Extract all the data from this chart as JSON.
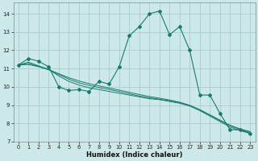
{
  "xlabel": "Humidex (Indice chaleur)",
  "background_color": "#cce8e8",
  "grid_color": "#aacccc",
  "line_color": "#1a7a6e",
  "x": [
    0,
    1,
    2,
    3,
    4,
    5,
    6,
    7,
    8,
    9,
    10,
    11,
    12,
    13,
    14,
    15,
    16,
    17,
    18,
    19,
    20,
    21,
    22,
    23
  ],
  "series_wiggly": [
    11.2,
    11.55,
    11.4,
    11.1,
    10.0,
    9.8,
    9.85,
    9.75,
    10.3,
    10.15,
    11.1,
    12.8,
    13.3,
    14.0,
    14.15,
    12.85,
    13.3,
    12.0,
    9.55,
    9.55,
    8.55,
    7.65,
    7.65,
    7.45
  ],
  "series_smooth1": [
    11.2,
    11.35,
    11.15,
    10.95,
    10.6,
    10.3,
    10.1,
    9.95,
    9.85,
    9.75,
    9.65,
    9.55,
    9.45,
    9.35,
    9.3,
    9.2,
    9.1,
    8.95,
    8.7,
    8.4,
    8.1,
    7.8,
    7.6,
    7.45
  ],
  "series_smooth2": [
    11.2,
    11.28,
    11.12,
    10.94,
    10.68,
    10.42,
    10.22,
    10.08,
    9.96,
    9.86,
    9.74,
    9.62,
    9.5,
    9.4,
    9.32,
    9.24,
    9.14,
    8.98,
    8.74,
    8.45,
    8.16,
    7.87,
    7.67,
    7.52
  ],
  "series_smooth3": [
    11.2,
    11.22,
    11.1,
    10.94,
    10.72,
    10.5,
    10.32,
    10.18,
    10.05,
    9.94,
    9.82,
    9.7,
    9.58,
    9.47,
    9.38,
    9.28,
    9.16,
    8.99,
    8.75,
    8.47,
    8.18,
    7.9,
    7.7,
    7.55
  ],
  "xlim": [
    -0.5,
    23.5
  ],
  "ylim": [
    7,
    14.6
  ],
  "yticks": [
    7,
    8,
    9,
    10,
    11,
    12,
    13,
    14
  ],
  "xticks": [
    0,
    1,
    2,
    3,
    4,
    5,
    6,
    7,
    8,
    9,
    10,
    11,
    12,
    13,
    14,
    15,
    16,
    17,
    18,
    19,
    20,
    21,
    22,
    23
  ],
  "figsize": [
    3.2,
    2.0
  ],
  "dpi": 100
}
